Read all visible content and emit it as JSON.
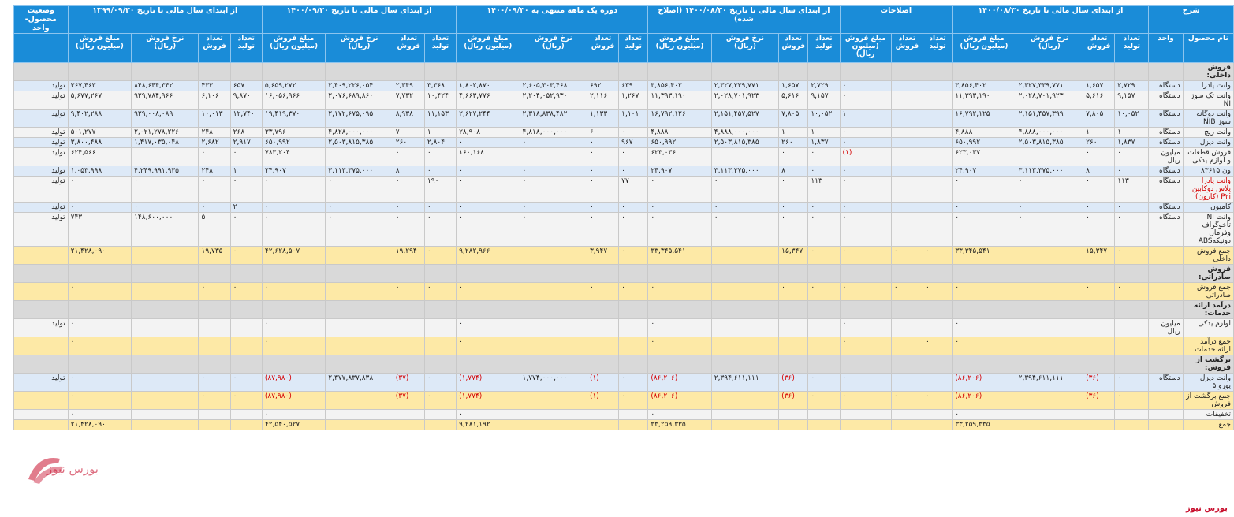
{
  "headers": {
    "group": [
      {
        "label": "شرح",
        "span": 2
      },
      {
        "label": "از ابتدای سال مالی تا تاریخ ۱۴۰۰/۰۸/۳۰",
        "span": 4
      },
      {
        "label": "اصلاحات",
        "span": 3
      },
      {
        "label": "از ابتدای سال مالی تا تاریخ ۱۴۰۰/۰۸/۳۰ (اصلاح شده)",
        "span": 4
      },
      {
        "label": "دوره یک ماهه منتهی به ۱۴۰۰/۰۹/۳۰",
        "span": 4
      },
      {
        "label": "از ابتدای سال مالی تا تاریخ ۱۴۰۰/۰۹/۳۰",
        "span": 4
      },
      {
        "label": "از ابتدای سال مالی تا تاریخ ۱۳۹۹/۰۹/۳۰",
        "span": 4
      },
      {
        "label": "وضعیت محصول-واحد",
        "span": 1
      }
    ],
    "sub": [
      "نام محصول",
      "واحد",
      "تعداد تولید",
      "تعداد فروش",
      "نرخ فروش (ریال)",
      "مبلغ فروش (میلیون ریال)",
      "تعداد تولید",
      "تعداد فروش",
      "مبلغ فروش (میلیون ریال)",
      "تعداد تولید",
      "تعداد فروش",
      "نرخ فروش (ریال)",
      "مبلغ فروش (میلیون ریال)",
      "تعداد تولید",
      "تعداد فروش",
      "نرخ فروش (ریال)",
      "مبلغ فروش (میلیون ریال)",
      "تعداد تولید",
      "تعداد فروش",
      "نرخ فروش (ریال)",
      "مبلغ فروش (میلیون ریال)",
      "تعداد تولید",
      "تعداد فروش",
      "نرخ فروش (ریال)",
      "مبلغ فروش (میلیون ریال)",
      ""
    ]
  },
  "rows": [
    {
      "type": "header",
      "cells": [
        "فروش داخلی:",
        "",
        "",
        "",
        "",
        "",
        "",
        "",
        "",
        "",
        "",
        "",
        "",
        "",
        "",
        "",
        "",
        "",
        "",
        "",
        "",
        "",
        "",
        "",
        "",
        ""
      ]
    },
    {
      "type": "a",
      "cells": [
        "وانت پادرا",
        "دستگاه",
        "۲,۷۲۹",
        "۱,۶۵۷",
        "۲,۳۲۷,۳۳۹,۷۷۱",
        "۳,۸۵۶,۴۰۲",
        "",
        "",
        "۰",
        "۲,۷۲۹",
        "۱,۶۵۷",
        "۲,۳۲۷,۳۳۹,۷۷۱",
        "۳,۸۵۶,۴۰۲",
        "۶۳۹",
        "۶۹۲",
        "۲,۶۰۵,۳۰۳,۴۶۸",
        "۱,۸۰۲,۸۷۰",
        "۳,۳۶۸",
        "۲,۳۴۹",
        "۲,۴۰۹,۲۲۶,۰۵۴",
        "۵,۶۵۹,۲۷۲",
        "۶۵۷",
        "۴۳۳",
        "۸۴۸,۶۴۴,۳۴۲",
        "۳۶۷,۴۶۳",
        "تولید"
      ]
    },
    {
      "type": "b",
      "cells": [
        "وانت تک سوز NI",
        "دستگاه",
        "۹,۱۵۷",
        "۵,۶۱۶",
        "۲,۰۲۸,۷۰۱,۹۲۳",
        "۱۱,۳۹۳,۱۹۰",
        "",
        "",
        "۰",
        "۹,۱۵۷",
        "۵,۶۱۶",
        "۲,۰۲۸,۷۰۱,۹۲۳",
        "۱۱,۳۹۳,۱۹۰",
        "۱,۲۶۷",
        "۲,۱۱۶",
        "۲,۲۰۴,۰۵۲,۹۳۰",
        "۴,۶۶۳,۷۷۶",
        "۱۰,۴۲۴",
        "۷,۷۳۲",
        "۲,۰۷۶,۶۸۹,۸۶۰",
        "۱۶,۰۵۶,۹۶۶",
        "۹,۸۷۰",
        "۶,۱۰۶",
        "۹۲۹,۷۸۴,۹۶۶",
        "۵,۶۷۷,۲۶۷",
        "تولید"
      ]
    },
    {
      "type": "a",
      "cells": [
        "وانت دوگانه سوز NIB",
        "دستگاه",
        "۱۰,۰۵۲",
        "۷,۸۰۵",
        "۲,۱۵۱,۴۵۷,۳۹۹",
        "۱۶,۷۹۲,۱۲۵",
        "",
        "",
        "۱",
        "۱۰,۰۵۲",
        "۷,۸۰۵",
        "۲,۱۵۱,۴۵۷,۵۲۷",
        "۱۶,۷۹۲,۱۲۶",
        "۱,۱۰۱",
        "۱,۱۳۳",
        "۲,۳۱۸,۸۳۸,۴۸۲",
        "۲,۶۲۷,۲۴۴",
        "۱۱,۱۵۳",
        "۸,۹۳۸",
        "۲,۱۷۲,۶۷۵,۰۹۵",
        "۱۹,۴۱۹,۳۷۰",
        "۱۲,۷۴۰",
        "۱۰,۰۱۳",
        "۹۲۹,۰۰۸,۰۸۹",
        "۹,۴۰۲,۲۸۸",
        "تولید"
      ]
    },
    {
      "type": "b",
      "cells": [
        "وانت ریچ",
        "دستگاه",
        "۱",
        "۱",
        "۴,۸۸۸,۰۰۰,۰۰۰",
        "۴,۸۸۸",
        "",
        "",
        "۰",
        "۱",
        "۱",
        "۴,۸۸۸,۰۰۰,۰۰۰",
        "۴,۸۸۸",
        "۰",
        "۶",
        "۴,۸۱۸,۰۰۰,۰۰۰",
        "۲۸,۹۰۸",
        "۱",
        "۷",
        "۴,۸۲۸,۰۰۰,۰۰۰",
        "۳۳,۷۹۶",
        "۲۶۸",
        "۲۴۸",
        "۲,۰۲۱,۲۷۸,۲۲۶",
        "۵۰۱,۲۷۷",
        "تولید"
      ]
    },
    {
      "type": "a",
      "cells": [
        "وانت دیزل",
        "دستگاه",
        "۱,۸۳۷",
        "۲۶۰",
        "۲,۵۰۳,۸۱۵,۳۸۵",
        "۶۵۰,۹۹۲",
        "",
        "",
        "۰",
        "۱,۸۳۷",
        "۲۶۰",
        "۲,۵۰۳,۸۱۵,۳۸۵",
        "۶۵۰,۹۹۲",
        "۹۶۷",
        "۰",
        "۰",
        "۰",
        "۲,۸۰۴",
        "۲۶۰",
        "۲,۵۰۳,۸۱۵,۳۸۵",
        "۶۵۰,۹۹۲",
        "۲,۹۱۷",
        "۲,۶۸۲",
        "۱,۴۱۷,۰۳۵,۰۴۸",
        "۳,۸۰۰,۴۸۸",
        "تولید"
      ]
    },
    {
      "type": "b",
      "cells": [
        "فروش قطعات و لوازم یدکی",
        "میلیون ریال",
        "۰",
        "۰",
        "",
        "۶۲۳,۰۳۷",
        "",
        "",
        "(۱)",
        "۰",
        "۰",
        "",
        "۶۲۳,۰۳۶",
        "۰",
        "۰",
        "",
        "۱۶۰,۱۶۸",
        "۰",
        "۰",
        "",
        "۷۸۳,۲۰۴",
        "۰",
        "۰",
        "",
        "۶۲۴,۵۶۶",
        "تولید"
      ]
    },
    {
      "type": "a",
      "cells": [
        "ون ۸۳۶۱۵",
        "دستگاه",
        "۰",
        "۸",
        "۳,۱۱۳,۳۷۵,۰۰۰",
        "۲۴,۹۰۷",
        "",
        "",
        "۰",
        "۰",
        "۸",
        "۳,۱۱۳,۳۷۵,۰۰۰",
        "۲۴,۹۰۷",
        "۰",
        "۰",
        "۰",
        "۰",
        "۰",
        "۸",
        "۳,۱۱۳,۳۷۵,۰۰۰",
        "۲۴,۹۰۷",
        "۱",
        "۲۴۸",
        "۴,۲۴۹,۹۹۱,۹۳۵",
        "۱,۰۵۳,۹۹۸",
        "تولید"
      ]
    },
    {
      "type": "b",
      "cells": [
        "وانت پادرا پلاس دوکابین P۲i (کارون)",
        "دستگاه",
        "۱۱۳",
        "۰",
        "۰",
        "۰",
        "",
        "",
        "۰",
        "۱۱۳",
        "۰",
        "۰",
        "۰",
        "۷۷",
        "۰",
        "۰",
        "۰",
        "۱۹۰",
        "۰",
        "۰",
        "۰",
        "۰",
        "۰",
        "۰",
        "۰",
        "تولید"
      ]
    },
    {
      "type": "a",
      "cells": [
        "کامیون",
        "دستگاه",
        "۰",
        "۰",
        "۰",
        "۰",
        "",
        "",
        "۰",
        "۰",
        "۰",
        "۰",
        "۰",
        "۰",
        "۰",
        "۰",
        "۰",
        "۰",
        "۰",
        "۰",
        "۰",
        "۲",
        "۰",
        "۰",
        "۰",
        "تولید"
      ]
    },
    {
      "type": "b",
      "cells": [
        "وانت NI تاخوگراف وفرمان دونیکهABS",
        "دستگاه",
        "۰",
        "۰",
        "۰",
        "۰",
        "",
        "",
        "۰",
        "۰",
        "۰",
        "۰",
        "۰",
        "۰",
        "۰",
        "۰",
        "۰",
        "۰",
        "۰",
        "۰",
        "۰",
        "۰",
        "۵",
        "۱۴۸,۶۰۰,۰۰۰",
        "۷۴۳",
        "تولید"
      ]
    },
    {
      "type": "s",
      "cells": [
        "جمع فروش داخلی",
        "",
        "۰",
        "۱۵,۳۴۷",
        "",
        "۳۳,۳۴۵,۵۴۱",
        "۰",
        "۰",
        "۰",
        "۰",
        "۱۵,۳۴۷",
        "",
        "۳۳,۳۴۵,۵۴۱",
        "۰",
        "۳,۹۴۷",
        "",
        "۹,۲۸۲,۹۶۶",
        "۰",
        "۱۹,۲۹۴",
        "",
        "۴۲,۶۲۸,۵۰۷",
        "۰",
        "۱۹,۷۳۵",
        "",
        "۲۱,۴۲۸,۰۹۰",
        ""
      ]
    },
    {
      "type": "header",
      "cells": [
        "فروش صادراتی:",
        "",
        "",
        "",
        "",
        "",
        "",
        "",
        "",
        "",
        "",
        "",
        "",
        "",
        "",
        "",
        "",
        "",
        "",
        "",
        "",
        "",
        "",
        "",
        "",
        ""
      ]
    },
    {
      "type": "s",
      "cells": [
        "جمع فروش صادراتی",
        "",
        "۰",
        "۰",
        "",
        "۰",
        "۰",
        "۰",
        "۰",
        "۰",
        "۰",
        "",
        "۰",
        "۰",
        "۰",
        "",
        "۰",
        "۰",
        "۰",
        "",
        "۰",
        "۰",
        "۰",
        "",
        "۰",
        ""
      ]
    },
    {
      "type": "header",
      "cells": [
        "درآمد ارائه خدمات:",
        "",
        "",
        "",
        "",
        "",
        "",
        "",
        "",
        "",
        "",
        "",
        "",
        "",
        "",
        "",
        "",
        "",
        "",
        "",
        "",
        "",
        "",
        "",
        "",
        ""
      ]
    },
    {
      "type": "b",
      "cells": [
        "لوازم یدکی",
        "میلیون ریال",
        "",
        "",
        "",
        "۰",
        "",
        "",
        "۰",
        "",
        "",
        "",
        "۰",
        "",
        "",
        "",
        "۰",
        "",
        "",
        "",
        "۰",
        "",
        "",
        "",
        "۰",
        "تولید"
      ]
    },
    {
      "type": "s",
      "cells": [
        "جمع درآمد ارائه خدمات",
        "",
        "",
        "",
        "",
        "۰",
        "۰",
        "",
        "۰",
        "",
        "",
        "",
        "۰",
        "",
        "",
        "",
        "۰",
        "",
        "",
        "",
        "۰",
        "",
        "",
        "",
        "۰",
        ""
      ]
    },
    {
      "type": "header",
      "cells": [
        "برگشت از فروش:",
        "",
        "",
        "",
        "",
        "",
        "",
        "",
        "",
        "",
        "",
        "",
        "",
        "",
        "",
        "",
        "",
        "",
        "",
        "",
        "",
        "",
        "",
        "",
        "",
        ""
      ]
    },
    {
      "type": "a",
      "cells": [
        "وانت دیزل یورو ۵",
        "دستگاه",
        "۰",
        "(۳۶)",
        "۲,۳۹۴,۶۱۱,۱۱۱",
        "(۸۶,۲۰۶)",
        "",
        "",
        "۰",
        "۰",
        "(۳۶)",
        "۲,۳۹۴,۶۱۱,۱۱۱",
        "(۸۶,۲۰۶)",
        "۰",
        "(۱)",
        "۱,۷۷۴,۰۰۰,۰۰۰",
        "(۱,۷۷۴)",
        "۰",
        "(۳۷)",
        "۲,۳۷۷,۸۳۷,۸۳۸",
        "(۸۷,۹۸۰)",
        "۰",
        "۰",
        "۰",
        "۰",
        "تولید"
      ]
    },
    {
      "type": "s",
      "cells": [
        "جمع برگشت از فروش",
        "",
        "۰",
        "(۳۶)",
        "",
        "(۸۶,۲۰۶)",
        "۰",
        "۰",
        "۰",
        "۰",
        "(۳۶)",
        "",
        "(۸۶,۲۰۶)",
        "۰",
        "(۱)",
        "",
        "(۱,۷۷۴)",
        "۰",
        "(۳۷)",
        "",
        "(۸۷,۹۸۰)",
        "۰",
        "۰",
        "",
        "۰",
        ""
      ]
    },
    {
      "type": "b",
      "cells": [
        "تخفیفات",
        "",
        "",
        "",
        "",
        "۰",
        "",
        "",
        "",
        "",
        "",
        "",
        "۰",
        "",
        "",
        "",
        "۰",
        "",
        "",
        "",
        "۰",
        "",
        "",
        "",
        "۰",
        ""
      ]
    },
    {
      "type": "s",
      "cells": [
        "جمع",
        "",
        "",
        "",
        "",
        "۳۳,۲۵۹,۳۳۵",
        "",
        "",
        "",
        "",
        "",
        "",
        "۳۳,۲۵۹,۳۳۵",
        "",
        "",
        "",
        "۹,۲۸۱,۱۹۲",
        "",
        "",
        "",
        "۴۲,۵۴۰,۵۲۷",
        "",
        "",
        "",
        "۲۱,۴۲۸,۰۹۰",
        ""
      ]
    }
  ],
  "watermark": {
    "text": "بورس نیوز",
    "color": "#c8102e"
  },
  "footer": {
    "brand": "بورس نیوز"
  }
}
